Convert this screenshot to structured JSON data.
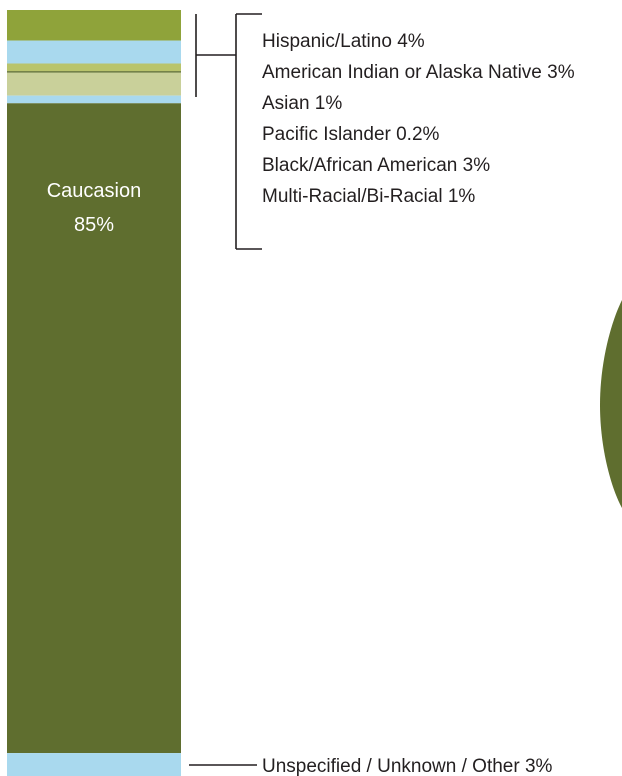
{
  "chart_data": {
    "type": "bar",
    "stacked": true,
    "orientation": "vertical",
    "segments_top_to_bottom": [
      {
        "name": "Hispanic/Latino",
        "value": 4,
        "label": "Hispanic/Latino 4%",
        "color": "#8fa33a"
      },
      {
        "name": "American Indian or Alaska Native",
        "value": 3,
        "label": "American Indian or Alaska Native 3%",
        "color": "#a9d9ee"
      },
      {
        "name": "Asian",
        "value": 1,
        "label": "Asian 1%",
        "color": "#b9c46c"
      },
      {
        "name": "Pacific Islander",
        "value": 0.2,
        "label": "Pacific Islander 0.2%",
        "color": "#5f6e2f"
      },
      {
        "name": "Black/African American",
        "value": 3,
        "label": "Black/African American 3%",
        "color": "#c9d09a"
      },
      {
        "name": "Multi-Racial/Bi-Racial",
        "value": 1,
        "label": "Multi-Racial/Bi-Racial 1%",
        "color": "#a9d9ee"
      },
      {
        "name": "Caucasion",
        "value": 85,
        "label": "85%",
        "color": "#5f6e2f"
      },
      {
        "name": "Unspecified / Unknown / Other",
        "value": 3,
        "label": "Unspecified / Unknown / Other 3%",
        "color": "#a9d9ee"
      }
    ],
    "inside_label": {
      "name": "Caucasion",
      "value": "85%"
    },
    "legend_group_labels": [
      "Hispanic/Latino 4%",
      "American Indian or Alaska Native 3%",
      "Asian 1%",
      "Pacific Islander 0.2%",
      "Black/African American 3%",
      "Multi-Racial/Bi-Racial 1%"
    ],
    "bottom_label": "Unspecified / Unknown / Other 3%",
    "decor_circle_color": "#5f6e2f"
  }
}
